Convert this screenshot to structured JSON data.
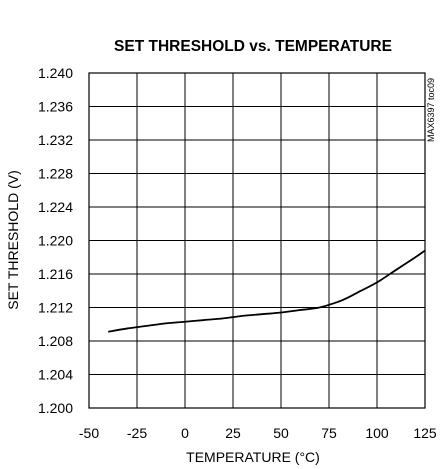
{
  "chart_data": {
    "type": "line",
    "title": "SET THRESHOLD vs. TEMPERATURE",
    "xlabel": "TEMPERATURE (°C)",
    "ylabel": "SET THRESHOLD (V)",
    "xlim": [
      -50,
      125
    ],
    "ylim": [
      1.2,
      1.24
    ],
    "xticks": [
      -50,
      -25,
      0,
      25,
      50,
      75,
      100,
      125
    ],
    "xtick_labels": [
      "-50",
      "-25",
      "0",
      "25",
      "50",
      "75",
      "100",
      "125"
    ],
    "yticks": [
      1.2,
      1.204,
      1.208,
      1.212,
      1.216,
      1.22,
      1.224,
      1.228,
      1.232,
      1.236,
      1.24
    ],
    "ytick_labels": [
      "1.200",
      "1.204",
      "1.208",
      "1.212",
      "1.216",
      "1.220",
      "1.224",
      "1.228",
      "1.232",
      "1.236",
      "1.240"
    ],
    "grid": true,
    "annotation": "MAX6397 toc09",
    "series": [
      {
        "x": [
          -40,
          -30,
          -20,
          -10,
          0,
          10,
          20,
          30,
          40,
          50,
          60,
          70,
          80,
          85,
          90,
          100,
          110,
          120,
          125
        ],
        "y": [
          1.2091,
          1.2095,
          1.2098,
          1.2101,
          1.2103,
          1.2105,
          1.2107,
          1.211,
          1.2112,
          1.2114,
          1.2117,
          1.212,
          1.2127,
          1.2132,
          1.2138,
          1.215,
          1.2165,
          1.218,
          1.2188
        ],
        "color": "#000000"
      }
    ]
  }
}
